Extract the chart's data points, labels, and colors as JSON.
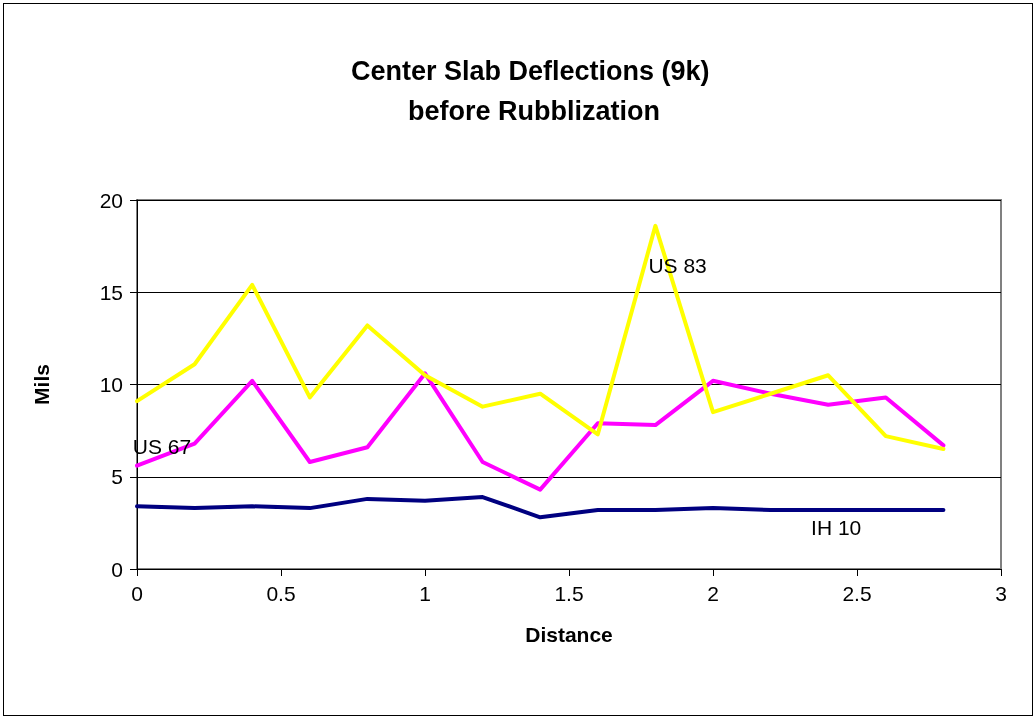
{
  "chart_data": {
    "type": "line",
    "title": "Center Slab Deflections (9k) before Rubblization",
    "xlabel": "Distance",
    "ylabel": "Mils",
    "x": [
      0,
      0.2,
      0.4,
      0.6,
      0.8,
      1,
      1.2,
      1.4,
      1.6,
      1.8,
      2,
      2.2,
      2.4,
      2.6,
      2.8
    ],
    "series": [
      {
        "name": "US 67",
        "color": "#ff00ff",
        "values": [
          5.6,
          6.8,
          10.2,
          5.8,
          6.6,
          10.6,
          5.8,
          4.3,
          7.9,
          7.8,
          10.2,
          9.5,
          8.9,
          9.3,
          6.7
        ]
      },
      {
        "name": "US 83",
        "color": "#ffff00",
        "values": [
          9.1,
          11.1,
          15.4,
          9.3,
          13.2,
          10.5,
          8.8,
          9.5,
          7.3,
          18.6,
          8.5,
          9.5,
          10.5,
          7.2,
          6.5
        ]
      },
      {
        "name": "IH 10",
        "color": "#000080",
        "values": [
          3.4,
          3.3,
          3.4,
          3.3,
          3.8,
          3.7,
          3.9,
          2.8,
          3.2,
          3.2,
          3.3,
          3.2,
          3.2,
          3.2,
          3.2
        ]
      }
    ],
    "xlim": [
      0,
      3
    ],
    "xticks": [
      0,
      0.5,
      1,
      1.5,
      2,
      2.5,
      3
    ],
    "ylim": [
      0,
      20
    ],
    "yticks": [
      0,
      5,
      10,
      15,
      20
    ],
    "grid": "y",
    "legend": false,
    "marker": "none",
    "line_style": "solid"
  }
}
